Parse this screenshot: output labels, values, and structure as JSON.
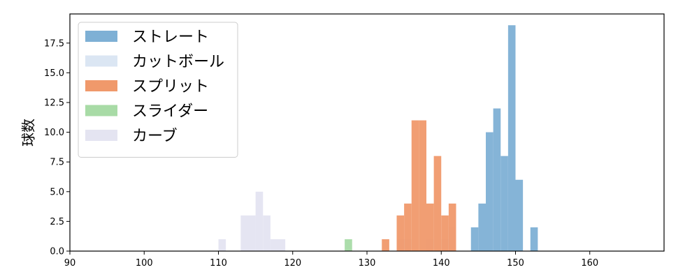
{
  "chart_data": {
    "type": "bar",
    "histogram": true,
    "ylabel": "球数",
    "xlabel": "",
    "xlim": [
      90,
      170
    ],
    "ylim": [
      0,
      19.95
    ],
    "xticks": [
      90,
      100,
      110,
      120,
      130,
      140,
      150,
      160
    ],
    "xtick_labels": [
      "90",
      "100",
      "110",
      "120",
      "130",
      "140",
      "150",
      "160"
    ],
    "yticks": [
      0,
      2.5,
      5,
      7.5,
      10,
      12.5,
      15,
      17.5
    ],
    "ytick_labels": [
      "0.0",
      "2.5",
      "5.0",
      "7.5",
      "10.0",
      "12.5",
      "15.0",
      "17.5"
    ],
    "bin_width": 1,
    "legend_position": "top-left",
    "series": [
      {
        "name": "ストレート",
        "color": "#7eb0d5",
        "bins": [
          {
            "x": 144,
            "y": 2
          },
          {
            "x": 145,
            "y": 4
          },
          {
            "x": 146,
            "y": 10
          },
          {
            "x": 147,
            "y": 12
          },
          {
            "x": 148,
            "y": 8
          },
          {
            "x": 149,
            "y": 19
          },
          {
            "x": 150,
            "y": 6
          },
          {
            "x": 152,
            "y": 2
          }
        ]
      },
      {
        "name": "カットボール",
        "color": "#dbe6f3",
        "bins": [
          {
            "x": 134,
            "y": 1
          },
          {
            "x": 135,
            "y": 1
          },
          {
            "x": 138,
            "y": 1
          },
          {
            "x": 140,
            "y": 1
          },
          {
            "x": 141,
            "y": 2
          }
        ]
      },
      {
        "name": "スプリット",
        "color": "#f0996b",
        "bins": [
          {
            "x": 132,
            "y": 1
          },
          {
            "x": 134,
            "y": 3
          },
          {
            "x": 135,
            "y": 4
          },
          {
            "x": 136,
            "y": 11
          },
          {
            "x": 137,
            "y": 11
          },
          {
            "x": 138,
            "y": 4
          },
          {
            "x": 139,
            "y": 8
          },
          {
            "x": 140,
            "y": 3
          },
          {
            "x": 141,
            "y": 4
          }
        ]
      },
      {
        "name": "スライダー",
        "color": "#a8dba6",
        "bins": [
          {
            "x": 127,
            "y": 1
          }
        ]
      },
      {
        "name": "カーブ",
        "color": "#e4e4f1",
        "bins": [
          {
            "x": 110,
            "y": 1
          },
          {
            "x": 113,
            "y": 3
          },
          {
            "x": 114,
            "y": 3
          },
          {
            "x": 115,
            "y": 5
          },
          {
            "x": 116,
            "y": 3
          },
          {
            "x": 117,
            "y": 1
          },
          {
            "x": 118,
            "y": 1
          }
        ]
      }
    ]
  }
}
